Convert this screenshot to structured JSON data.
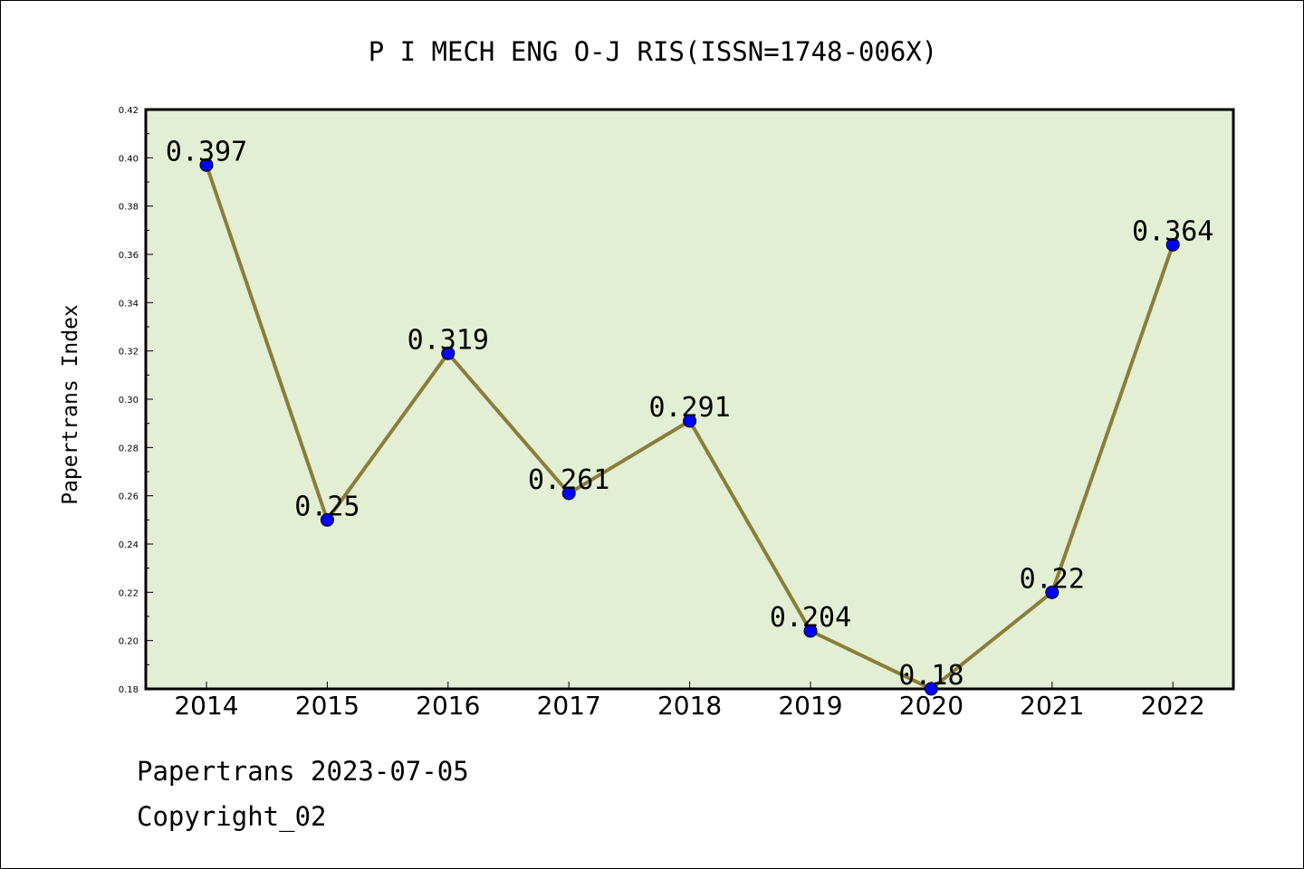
{
  "chart_data": {
    "type": "line",
    "title": "P I MECH ENG O-J RIS(ISSN=1748-006X)",
    "xlabel": "",
    "ylabel": "Papertrans Index",
    "categories": [
      "2014",
      "2015",
      "2016",
      "2017",
      "2018",
      "2019",
      "2020",
      "2021",
      "2022"
    ],
    "series": [
      {
        "values": [
          0.397,
          0.25,
          0.319,
          0.261,
          0.291,
          0.204,
          0.18,
          0.22,
          0.364
        ],
        "data_labels": [
          "0.397",
          "0.25",
          "0.319",
          "0.261",
          "0.291",
          "0.204",
          "0.18",
          "0.22",
          "0.364"
        ]
      }
    ],
    "ylim": [
      0.18,
      0.42
    ],
    "yticks": [
      "0.18",
      "0.20",
      "0.22",
      "0.24",
      "0.26",
      "0.28",
      "0.30",
      "0.32",
      "0.34",
      "0.36",
      "0.38",
      "0.40",
      "0.42"
    ],
    "grid": false,
    "legend": "none",
    "colors": {
      "plot_background": "#e2efd4",
      "line": "#8b7d3a",
      "marker": "#0000ff",
      "axis": "#000000"
    }
  },
  "footer": {
    "line1": "Papertrans 2023-07-05",
    "line2": "Copyright_02"
  }
}
